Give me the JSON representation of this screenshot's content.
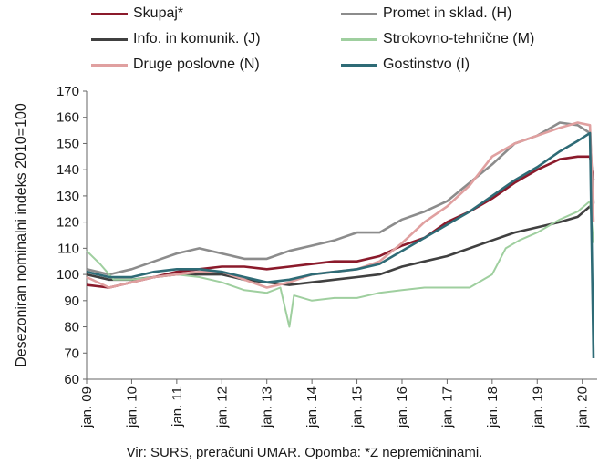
{
  "chart_data": {
    "type": "line",
    "ylabel": "Desezoniran nominalni indeks 2010=100",
    "xlabel": "",
    "ylim": [
      60,
      170
    ],
    "yticks": [
      60,
      70,
      80,
      90,
      100,
      110,
      120,
      130,
      140,
      150,
      160,
      170
    ],
    "xticks": [
      "jan. 09",
      "jan. 10",
      "jan. 11",
      "jan. 12",
      "jan. 13",
      "jan. 14",
      "jan. 15",
      "jan. 16",
      "jan. 17",
      "jan. 18",
      "jan. 19",
      "jan. 20"
    ],
    "x_start": "2009-01",
    "x_end": "2020-04",
    "grid": false,
    "legend": "top",
    "note": "Vir: SURS, preračuni UMAR. Opomba: *Z nepremičninami.",
    "series": [
      {
        "name": "Skupaj*",
        "color": "#8b1a2b",
        "points": [
          [
            2009.0,
            96
          ],
          [
            2009.5,
            95
          ],
          [
            2010.0,
            97
          ],
          [
            2010.5,
            99
          ],
          [
            2011.0,
            101
          ],
          [
            2011.5,
            102
          ],
          [
            2012.0,
            103
          ],
          [
            2012.5,
            103
          ],
          [
            2013.0,
            102
          ],
          [
            2013.5,
            103
          ],
          [
            2014.0,
            104
          ],
          [
            2014.5,
            105
          ],
          [
            2015.0,
            105
          ],
          [
            2015.5,
            107
          ],
          [
            2016.0,
            111
          ],
          [
            2016.5,
            114
          ],
          [
            2017.0,
            120
          ],
          [
            2017.5,
            124
          ],
          [
            2018.0,
            129
          ],
          [
            2018.5,
            135
          ],
          [
            2019.0,
            140
          ],
          [
            2019.5,
            144
          ],
          [
            2019.9,
            145
          ],
          [
            2020.17,
            145
          ],
          [
            2020.25,
            136
          ]
        ]
      },
      {
        "name": "Promet in sklad. (H)",
        "color": "#8c8c8c",
        "points": [
          [
            2009.0,
            102
          ],
          [
            2009.5,
            100
          ],
          [
            2010.0,
            102
          ],
          [
            2010.5,
            105
          ],
          [
            2011.0,
            108
          ],
          [
            2011.5,
            110
          ],
          [
            2012.0,
            108
          ],
          [
            2012.5,
            106
          ],
          [
            2013.0,
            106
          ],
          [
            2013.5,
            109
          ],
          [
            2014.0,
            111
          ],
          [
            2014.5,
            113
          ],
          [
            2015.0,
            116
          ],
          [
            2015.5,
            116
          ],
          [
            2016.0,
            121
          ],
          [
            2016.5,
            124
          ],
          [
            2017.0,
            128
          ],
          [
            2017.5,
            135
          ],
          [
            2018.0,
            142
          ],
          [
            2018.5,
            150
          ],
          [
            2019.0,
            153
          ],
          [
            2019.5,
            158
          ],
          [
            2019.9,
            157
          ],
          [
            2020.17,
            154
          ],
          [
            2020.25,
            127
          ]
        ]
      },
      {
        "name": "Info. in komunik. (J)",
        "color": "#404040",
        "points": [
          [
            2009.0,
            100
          ],
          [
            2009.5,
            98
          ],
          [
            2010.0,
            98
          ],
          [
            2010.5,
            99
          ],
          [
            2011.0,
            100
          ],
          [
            2011.5,
            100
          ],
          [
            2012.0,
            100
          ],
          [
            2012.5,
            98
          ],
          [
            2013.0,
            97
          ],
          [
            2013.5,
            96
          ],
          [
            2014.0,
            97
          ],
          [
            2014.5,
            98
          ],
          [
            2015.0,
            99
          ],
          [
            2015.5,
            100
          ],
          [
            2016.0,
            103
          ],
          [
            2016.5,
            105
          ],
          [
            2017.0,
            107
          ],
          [
            2017.5,
            110
          ],
          [
            2018.0,
            113
          ],
          [
            2018.5,
            116
          ],
          [
            2019.0,
            118
          ],
          [
            2019.5,
            120
          ],
          [
            2019.9,
            122
          ],
          [
            2020.17,
            126
          ],
          [
            2020.25,
            125
          ]
        ]
      },
      {
        "name": "Strokovno-tehnične (M)",
        "color": "#9fcf9f",
        "points": [
          [
            2009.0,
            109
          ],
          [
            2009.3,
            104
          ],
          [
            2009.6,
            98
          ],
          [
            2010.0,
            98
          ],
          [
            2010.5,
            99
          ],
          [
            2011.0,
            100
          ],
          [
            2011.5,
            99
          ],
          [
            2012.0,
            97
          ],
          [
            2012.5,
            94
          ],
          [
            2013.0,
            93
          ],
          [
            2013.3,
            95
          ],
          [
            2013.5,
            80
          ],
          [
            2013.6,
            92
          ],
          [
            2014.0,
            90
          ],
          [
            2014.5,
            91
          ],
          [
            2015.0,
            91
          ],
          [
            2015.5,
            93
          ],
          [
            2016.0,
            94
          ],
          [
            2016.5,
            95
          ],
          [
            2017.0,
            95
          ],
          [
            2017.5,
            95
          ],
          [
            2018.0,
            100
          ],
          [
            2018.3,
            110
          ],
          [
            2018.6,
            113
          ],
          [
            2019.0,
            116
          ],
          [
            2019.5,
            121
          ],
          [
            2019.9,
            124
          ],
          [
            2020.17,
            128
          ],
          [
            2020.25,
            112
          ]
        ]
      },
      {
        "name": "Druge poslovne (N)",
        "color": "#e0a0a0",
        "points": [
          [
            2009.0,
            99
          ],
          [
            2009.5,
            95
          ],
          [
            2010.0,
            97
          ],
          [
            2010.5,
            99
          ],
          [
            2011.0,
            100
          ],
          [
            2011.5,
            101
          ],
          [
            2012.0,
            101
          ],
          [
            2012.5,
            98
          ],
          [
            2013.0,
            95
          ],
          [
            2013.5,
            97
          ],
          [
            2014.0,
            100
          ],
          [
            2014.5,
            101
          ],
          [
            2015.0,
            102
          ],
          [
            2015.5,
            105
          ],
          [
            2016.0,
            112
          ],
          [
            2016.5,
            120
          ],
          [
            2017.0,
            126
          ],
          [
            2017.5,
            134
          ],
          [
            2018.0,
            145
          ],
          [
            2018.5,
            150
          ],
          [
            2019.0,
            153
          ],
          [
            2019.5,
            156
          ],
          [
            2019.9,
            158
          ],
          [
            2020.17,
            157
          ],
          [
            2020.25,
            120
          ]
        ]
      },
      {
        "name": "Gostinstvo (I)",
        "color": "#2e6b76",
        "points": [
          [
            2009.0,
            101
          ],
          [
            2009.5,
            99
          ],
          [
            2010.0,
            99
          ],
          [
            2010.5,
            101
          ],
          [
            2011.0,
            102
          ],
          [
            2011.5,
            102
          ],
          [
            2012.0,
            101
          ],
          [
            2012.5,
            99
          ],
          [
            2013.0,
            97
          ],
          [
            2013.5,
            98
          ],
          [
            2014.0,
            100
          ],
          [
            2014.5,
            101
          ],
          [
            2015.0,
            102
          ],
          [
            2015.5,
            104
          ],
          [
            2016.0,
            109
          ],
          [
            2016.5,
            114
          ],
          [
            2017.0,
            119
          ],
          [
            2017.5,
            124
          ],
          [
            2018.0,
            130
          ],
          [
            2018.5,
            136
          ],
          [
            2019.0,
            141
          ],
          [
            2019.5,
            147
          ],
          [
            2019.9,
            151
          ],
          [
            2020.17,
            154
          ],
          [
            2020.25,
            68
          ]
        ]
      }
    ]
  }
}
